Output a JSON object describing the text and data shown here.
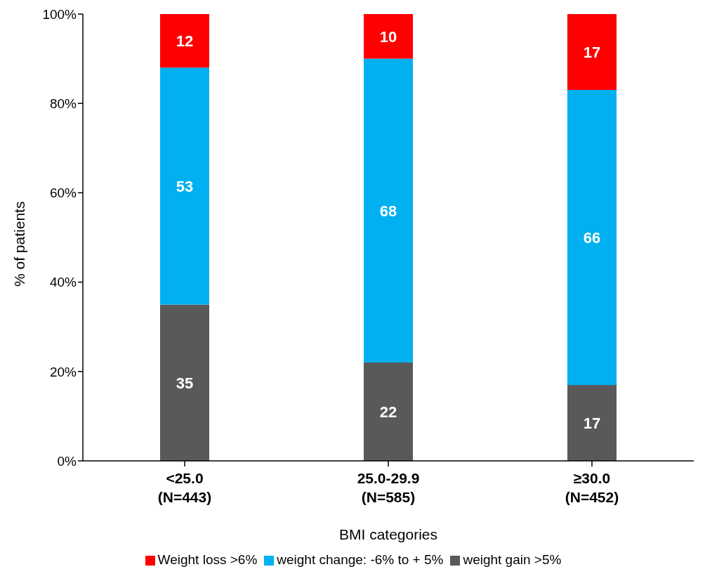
{
  "chart_data": {
    "type": "bar",
    "stacked": true,
    "xlabel": "BMI categories",
    "ylabel": "% of patients",
    "categories": [
      "<25.0\n(N=443)",
      "25.0-29.9\n(N=585)",
      "≥30.0\n(N=452)"
    ],
    "series": [
      {
        "name": "weight gain >5%",
        "color": "#595959",
        "values": [
          35,
          22,
          17
        ]
      },
      {
        "name": "weight change: -6% to + 5%",
        "color": "#00b0f0",
        "values": [
          53,
          68,
          66
        ]
      },
      {
        "name": "Weight loss >6%",
        "color": "#ff0000",
        "values": [
          12,
          10,
          17
        ]
      }
    ],
    "ylim": [
      0,
      100
    ],
    "yticks": [
      {
        "value": 0,
        "label": "0%"
      },
      {
        "value": 20,
        "label": "20%"
      },
      {
        "value": 40,
        "label": "40%"
      },
      {
        "value": 60,
        "label": "60%"
      },
      {
        "value": 80,
        "label": "80%"
      },
      {
        "value": 100,
        "label": "100%"
      }
    ],
    "grid": false,
    "legend": "bottom",
    "data_labels": true
  }
}
